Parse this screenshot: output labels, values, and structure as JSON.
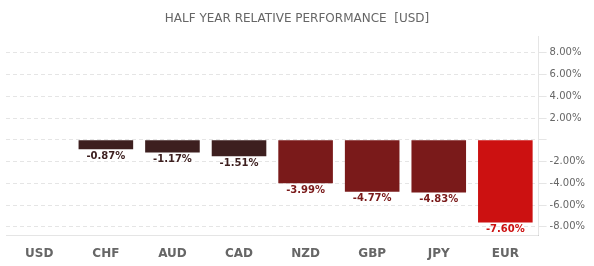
{
  "chart_data": {
    "type": "bar",
    "title": "HALF YEAR RELATIVE PERFORMANCE  [USD]",
    "categories": [
      "USD",
      "CHF",
      "AUD",
      "CAD",
      "NZD",
      "GBP",
      "JPY",
      "EUR"
    ],
    "values": [
      0.0,
      -0.87,
      -1.17,
      -1.51,
      -3.99,
      -4.77,
      -4.83,
      -7.6
    ],
    "value_labels": [
      null,
      "-0.87%",
      "-1.17%",
      "-1.51%",
      "-3.99%",
      "-4.77%",
      "-4.83%",
      "-7.60%"
    ],
    "data_labels": true,
    "colors": [
      "#1c1c1c",
      "#3d1f1f",
      "#3d1f1f",
      "#3d1f1f",
      "#7a1a1a",
      "#7a1a1a",
      "#7a1a1a",
      "#cc1111"
    ],
    "ylim": [
      -8.8,
      9.5
    ],
    "yticks": [
      {
        "value": 8.0,
        "label": "8.00%"
      },
      {
        "value": 6.0,
        "label": "6.00%"
      },
      {
        "value": 4.0,
        "label": "4.00%"
      },
      {
        "value": 2.0,
        "label": "2.00%"
      },
      {
        "value": 0,
        "label": null
      },
      {
        "value": -2.0,
        "label": "-2.00%"
      },
      {
        "value": -4.0,
        "label": "-4.00%"
      },
      {
        "value": -6.0,
        "label": "-6.00%"
      },
      {
        "value": -8.0,
        "label": "-8.00%"
      }
    ],
    "grid": true
  }
}
